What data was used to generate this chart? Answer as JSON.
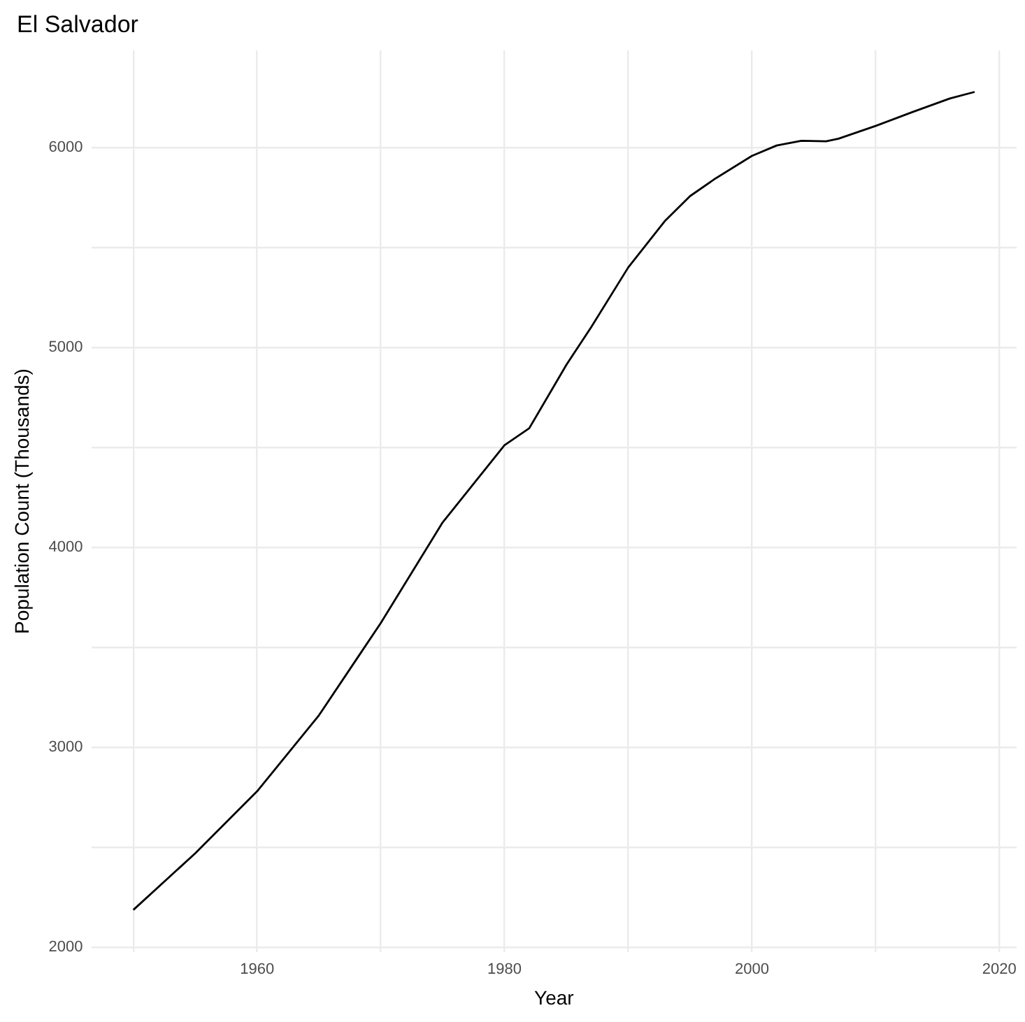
{
  "chart_data": {
    "type": "line",
    "title": "El Salvador",
    "xlabel": "Year",
    "ylabel": "Population Count (Thousands)",
    "x": [
      1950,
      1955,
      1960,
      1965,
      1970,
      1975,
      1980,
      1982,
      1985,
      1987,
      1990,
      1993,
      1995,
      1997,
      2000,
      2002,
      2004,
      2006,
      2007,
      2010,
      2013,
      2016,
      2018
    ],
    "series": [
      {
        "color": "#000000",
        "values": [
          2186,
          2469,
          2779,
          3159,
          3621,
          4124,
          4510,
          4595,
          4912,
          5100,
          5399,
          5634,
          5756,
          5842,
          5957,
          6009,
          6033,
          6030,
          6043,
          6107,
          6177,
          6244,
          6277
        ]
      }
    ],
    "xlim": [
      1946.6,
      2021.4
    ],
    "ylim": [
      1975,
      6485
    ],
    "xticks": [
      {
        "value": 1950,
        "label": null
      },
      1960,
      {
        "value": 1970,
        "label": null
      },
      1980,
      {
        "value": 1990,
        "label": null
      },
      2000,
      {
        "value": 2010,
        "label": null
      },
      2020
    ],
    "yticks": [
      2000,
      {
        "value": 2500,
        "label": null
      },
      3000,
      {
        "value": 3500,
        "label": null
      },
      4000,
      {
        "value": 4500,
        "label": null
      },
      5000,
      {
        "value": 5500,
        "label": null
      },
      6000
    ],
    "grid": true,
    "legend": false,
    "marker": "none",
    "line_style": "solid"
  }
}
